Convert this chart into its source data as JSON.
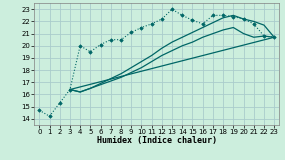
{
  "xlabel": "Humidex (Indice chaleur)",
  "bg_color": "#cceedd",
  "grid_color": "#aacccc",
  "line_color": "#006666",
  "xlim": [
    -0.5,
    23.5
  ],
  "ylim": [
    13.5,
    23.5
  ],
  "xticks": [
    0,
    1,
    2,
    3,
    4,
    5,
    6,
    7,
    8,
    9,
    10,
    11,
    12,
    13,
    14,
    15,
    16,
    17,
    18,
    19,
    20,
    21,
    22,
    23
  ],
  "yticks": [
    14,
    15,
    16,
    17,
    18,
    19,
    20,
    21,
    22,
    23
  ],
  "line1_x": [
    0,
    1,
    2,
    3,
    4,
    5,
    6,
    7,
    8,
    9,
    10,
    11,
    12,
    13,
    14,
    15,
    16,
    17,
    18,
    19,
    20,
    21,
    22,
    23
  ],
  "line1_y": [
    14.7,
    14.2,
    15.3,
    16.4,
    20.0,
    19.5,
    20.1,
    20.5,
    20.5,
    21.1,
    21.5,
    21.8,
    22.2,
    23.0,
    22.5,
    22.1,
    21.8,
    22.5,
    22.5,
    22.4,
    22.2,
    21.8,
    20.8,
    20.7
  ],
  "line2_x": [
    3,
    4,
    5,
    6,
    7,
    8,
    9,
    10,
    11,
    12,
    13,
    14,
    15,
    16,
    17,
    18,
    19,
    20,
    21,
    22,
    23
  ],
  "line2_y": [
    16.4,
    16.2,
    16.5,
    16.9,
    17.3,
    17.7,
    18.2,
    18.7,
    19.2,
    19.8,
    20.3,
    20.7,
    21.1,
    21.5,
    21.9,
    22.3,
    22.5,
    22.2,
    22.0,
    21.7,
    20.7
  ],
  "line3_x": [
    3,
    4,
    5,
    6,
    7,
    8,
    9,
    10,
    11,
    12,
    13,
    14,
    15,
    16,
    17,
    18,
    19,
    20,
    21,
    22,
    23
  ],
  "line3_y": [
    16.4,
    16.2,
    16.5,
    16.8,
    17.1,
    17.4,
    17.8,
    18.2,
    18.7,
    19.2,
    19.6,
    20.0,
    20.3,
    20.7,
    21.0,
    21.3,
    21.5,
    21.0,
    20.7,
    20.8,
    20.7
  ],
  "line4_x": [
    3,
    23
  ],
  "line4_y": [
    16.4,
    20.7
  ]
}
